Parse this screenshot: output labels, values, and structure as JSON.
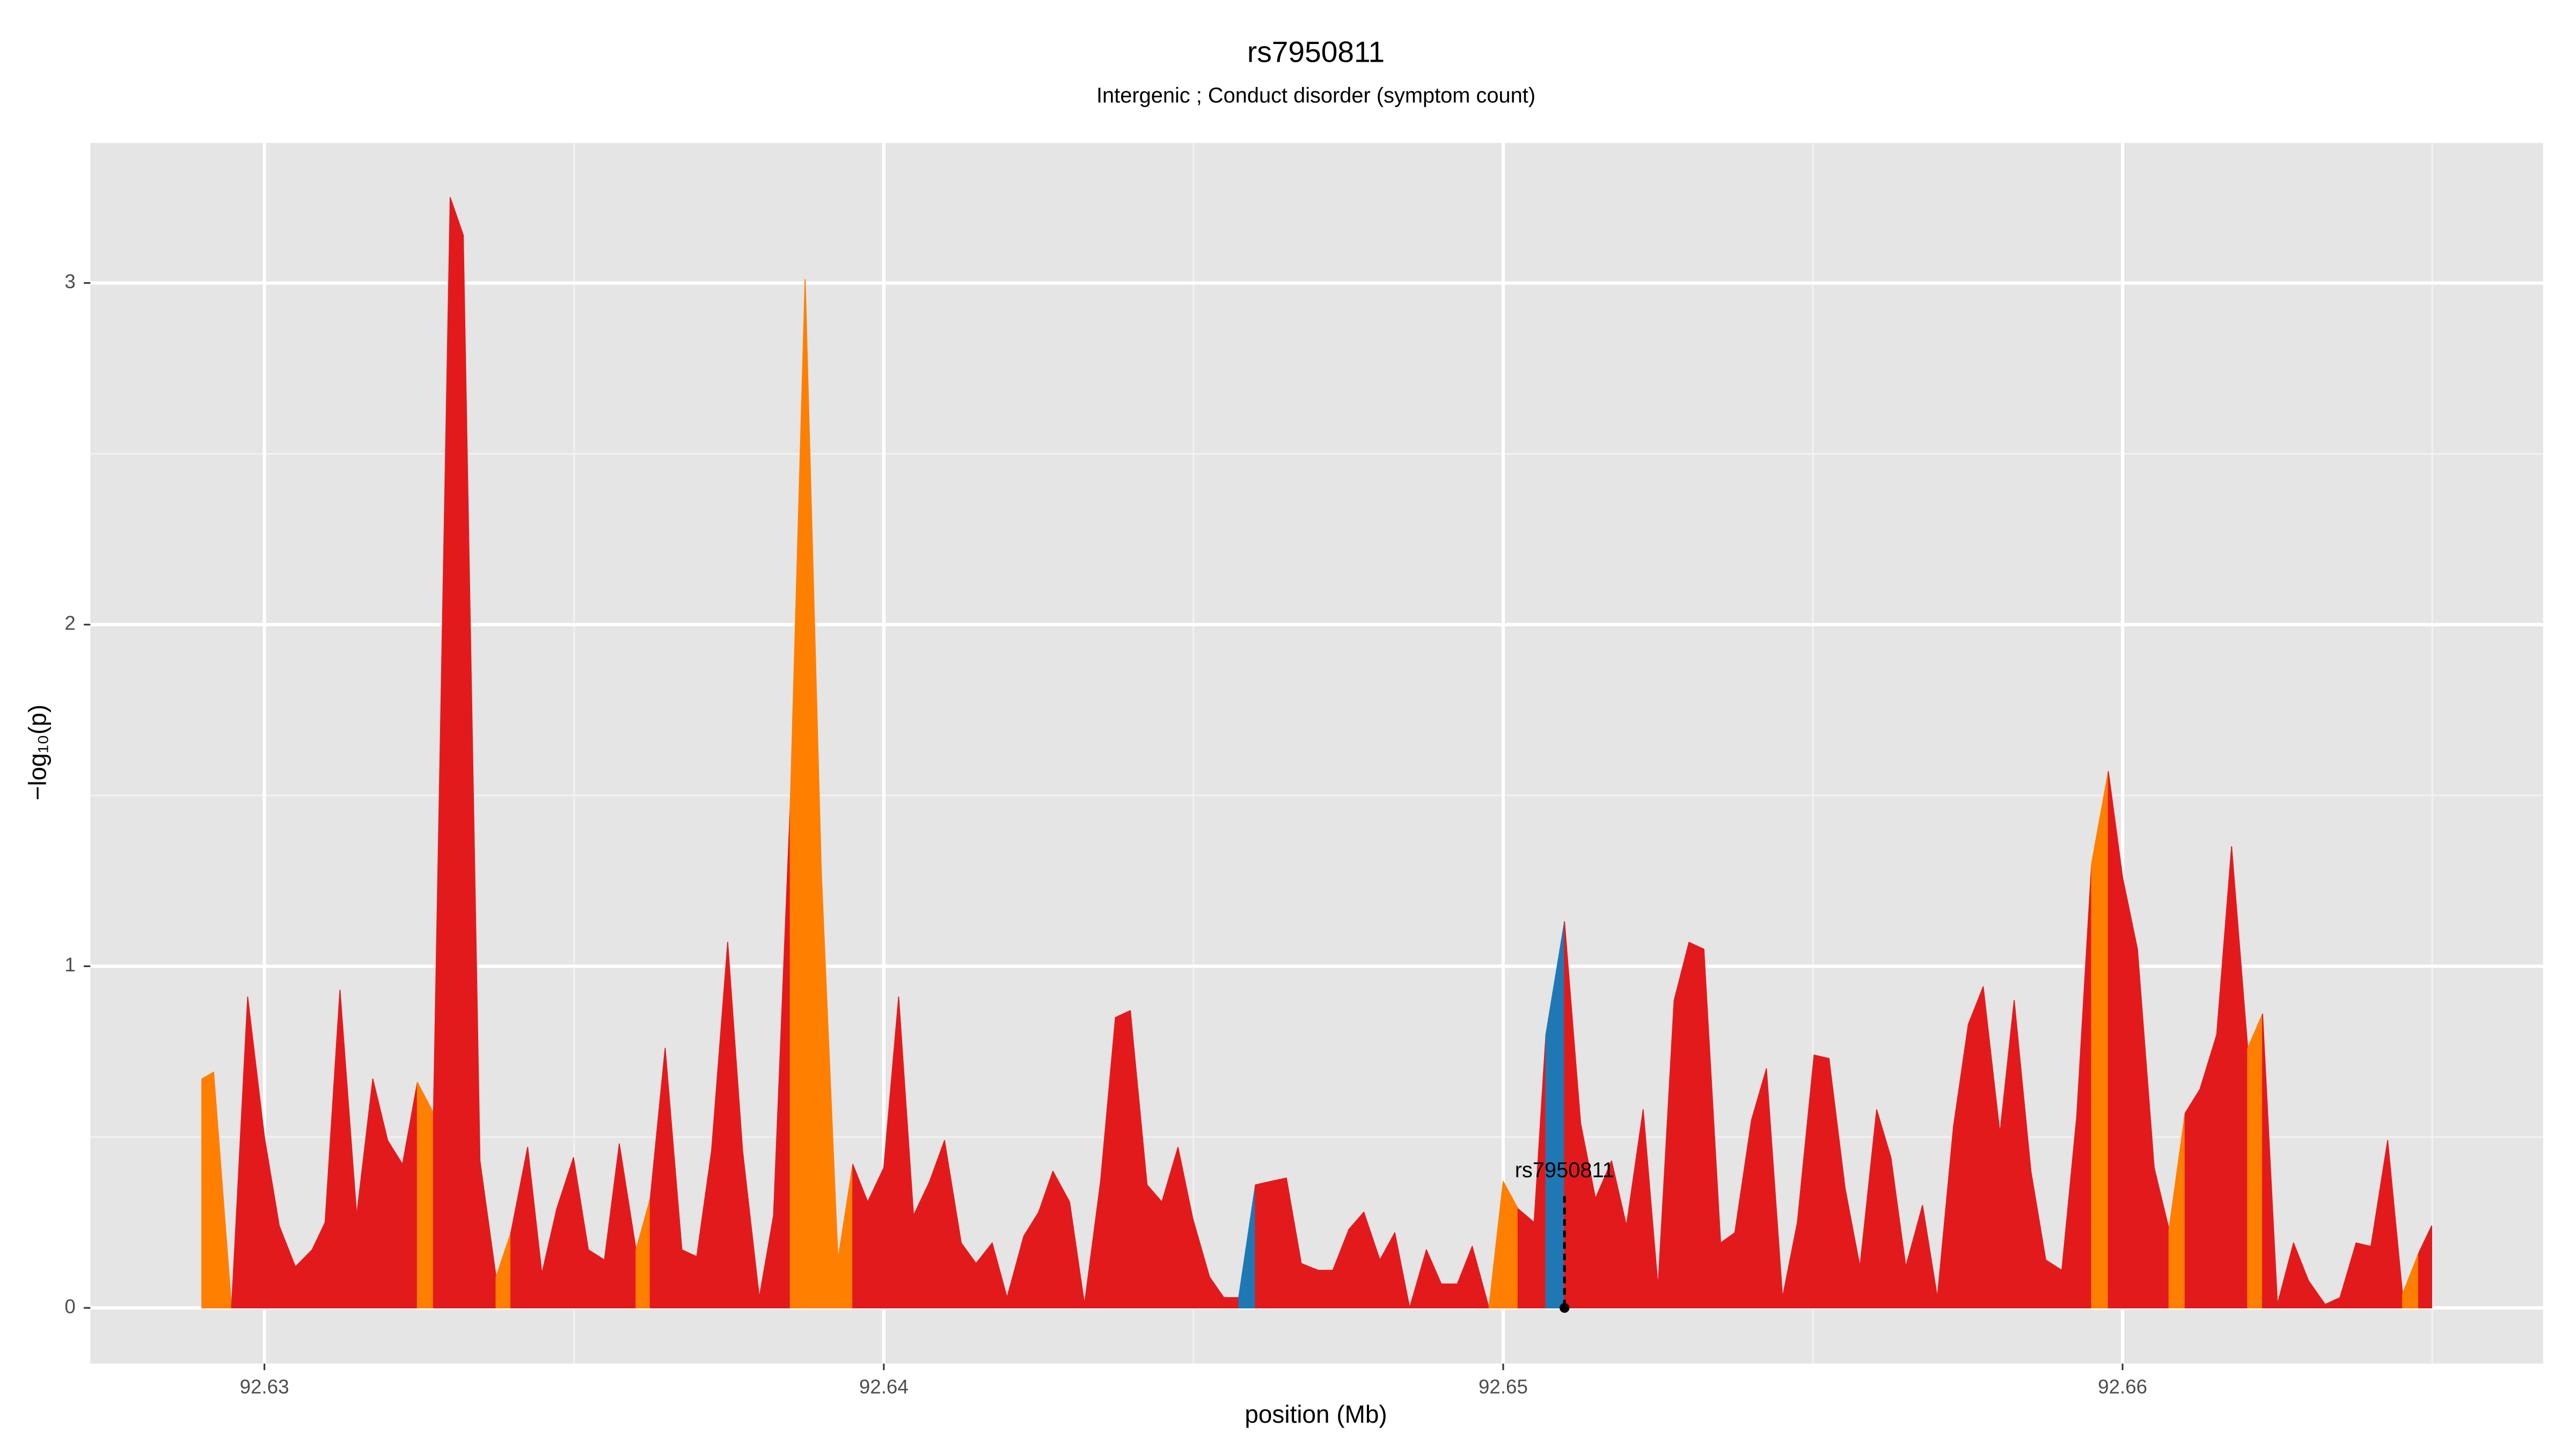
{
  "chart_data": {
    "type": "area",
    "title": "rs7950811",
    "subtitle": "Intergenic ; Conduct disorder (symptom count)",
    "xlabel": "position (Mb)",
    "ylabel": "−log₁₀(p)",
    "xlim": [
      92.62719,
      92.66679
    ],
    "ylim": [
      -0.163,
      3.41
    ],
    "xticks": [
      92.63,
      92.64,
      92.65,
      92.66
    ],
    "yticks": [
      0,
      1,
      2,
      3
    ],
    "xminorticks": [
      92.635,
      92.645,
      92.655,
      92.665
    ],
    "yminorticks": [
      0.5,
      1.5,
      2.5
    ],
    "grid": true,
    "annotation": {
      "text": "rs7950811",
      "x": 92.65099,
      "y": 0
    },
    "series": [
      {
        "x": [
          92.62899,
          92.62918,
          92.62947,
          92.62973,
          92.63,
          92.63024,
          92.6305,
          92.63077,
          92.63098,
          92.63122,
          92.63149,
          92.63175,
          92.63199,
          92.63223,
          92.63247,
          92.63273,
          92.633,
          92.63321,
          92.63348,
          92.63374,
          92.63398,
          92.63425,
          92.63448,
          92.63472,
          92.63499,
          92.63523,
          92.63549,
          92.63573,
          92.636,
          92.63623,
          92.63647,
          92.63674,
          92.63698,
          92.63722,
          92.63748,
          92.63772,
          92.63799,
          92.63822,
          92.63849,
          92.63873,
          92.63899,
          92.63926,
          92.6395,
          92.63974,
          92.64,
          92.64024,
          92.64048,
          92.64074,
          92.64098,
          92.64125,
          92.64149,
          92.64175,
          92.64199,
          92.64226,
          92.6425,
          92.64273,
          92.643,
          92.64324,
          92.6435,
          92.64374,
          92.64398,
          92.64425,
          92.64449,
          92.64475,
          92.64499,
          92.64526,
          92.64549,
          92.64573,
          92.646,
          92.64624,
          92.6465,
          92.64674,
          92.64701,
          92.64725,
          92.64751,
          92.64775,
          92.64801,
          92.64825,
          92.64849,
          92.64876,
          92.649,
          92.64926,
          92.6495,
          92.64977,
          92.65,
          92.65024,
          92.6505,
          92.65069,
          92.65099,
          92.65125,
          92.65149,
          92.65175,
          92.65199,
          92.65226,
          92.6525,
          92.65276,
          92.653,
          92.65324,
          92.65351,
          92.65374,
          92.65401,
          92.65425,
          92.65451,
          92.65475,
          92.65502,
          92.65526,
          92.65552,
          92.65576,
          92.65603,
          92.65626,
          92.6565,
          92.65677,
          92.65701,
          92.65727,
          92.65751,
          92.65775,
          92.65802,
          92.65825,
          92.65852,
          92.65876,
          92.65902,
          92.65926,
          92.6595,
          92.65977,
          92.66,
          92.66024,
          92.66051,
          92.66075,
          92.66101,
          92.66125,
          92.66152,
          92.66176,
          92.66202,
          92.66226,
          92.6625,
          92.66276,
          92.663,
          92.66327,
          92.66351,
          92.66377,
          92.66401,
          92.66428,
          92.66452,
          92.66478,
          92.66499
        ],
        "values": [
          0.67,
          0.69,
          0,
          0.91,
          0.5,
          0.24,
          0.12,
          0.17,
          0.25,
          0.93,
          0.27,
          0.67,
          0.49,
          0.42,
          0.66,
          0.57,
          3.25,
          3.14,
          0.43,
          0.09,
          0.22,
          0.47,
          0.1,
          0.29,
          0.44,
          0.17,
          0.14,
          0.48,
          0.17,
          0.32,
          0.76,
          0.17,
          0.15,
          0.46,
          1.07,
          0.46,
          0.03,
          0.27,
          1.47,
          3.01,
          1.28,
          0.14,
          0.42,
          0.31,
          0.41,
          0.91,
          0.27,
          0.37,
          0.49,
          0.19,
          0.13,
          0.19,
          0.03,
          0.21,
          0.28,
          0.4,
          0.31,
          0.01,
          0.37,
          0.85,
          0.87,
          0.36,
          0.31,
          0.47,
          0.26,
          0.09,
          0.03,
          0.03,
          0.36,
          0.37,
          0.38,
          0.13,
          0.11,
          0.11,
          0.23,
          0.28,
          0.14,
          0.22,
          0,
          0.17,
          0.07,
          0.07,
          0.18,
          0,
          0.37,
          0.29,
          0.25,
          0.8,
          1.13,
          0.54,
          0.32,
          0.43,
          0.24,
          0.58,
          0.06,
          0.9,
          1.07,
          1.05,
          0.19,
          0.22,
          0.55,
          0.7,
          0.03,
          0.25,
          0.74,
          0.73,
          0.35,
          0.12,
          0.58,
          0.44,
          0.12,
          0.3,
          0.03,
          0.53,
          0.83,
          0.94,
          0.51,
          0.9,
          0.4,
          0.14,
          0.11,
          0.56,
          1.3,
          1.57,
          1.26,
          1.05,
          0.41,
          0.23,
          0.57,
          0.64,
          0.8,
          1.35,
          0.76,
          0.86,
          0.01,
          0.19,
          0.08,
          0.01,
          0.03,
          0.19,
          0.18,
          0.49,
          0.04,
          0.16,
          0.24
        ],
        "colors": [
          "#ff7f00",
          "#ff7f00",
          "#e31a1c",
          "#e31a1c",
          "#e31a1c",
          "#e31a1c",
          "#e31a1c",
          "#e31a1c",
          "#e31a1c",
          "#e31a1c",
          "#e31a1c",
          "#e31a1c",
          "#e31a1c",
          "#e31a1c",
          "#ff7f00",
          "#e31a1c",
          "#e31a1c",
          "#e31a1c",
          "#e31a1c",
          "#ff7f00",
          "#e31a1c",
          "#e31a1c",
          "#e31a1c",
          "#e31a1c",
          "#e31a1c",
          "#e31a1c",
          "#e31a1c",
          "#e31a1c",
          "#ff7f00",
          "#e31a1c",
          "#e31a1c",
          "#e31a1c",
          "#e31a1c",
          "#e31a1c",
          "#e31a1c",
          "#e31a1c",
          "#e31a1c",
          "#e31a1c",
          "#ff7f00",
          "#ff7f00",
          "#ff7f00",
          "#ff7f00",
          "#e31a1c",
          "#e31a1c",
          "#e31a1c",
          "#e31a1c",
          "#e31a1c",
          "#e31a1c",
          "#e31a1c",
          "#e31a1c",
          "#e31a1c",
          "#e31a1c",
          "#e31a1c",
          "#e31a1c",
          "#e31a1c",
          "#e31a1c",
          "#e31a1c",
          "#e31a1c",
          "#e31a1c",
          "#e31a1c",
          "#e31a1c",
          "#e31a1c",
          "#e31a1c",
          "#e31a1c",
          "#e31a1c",
          "#e31a1c",
          "#e31a1c",
          "#1f78b4",
          "#e31a1c",
          "#e31a1c",
          "#e31a1c",
          "#e31a1c",
          "#e31a1c",
          "#e31a1c",
          "#e31a1c",
          "#e31a1c",
          "#e31a1c",
          "#e31a1c",
          "#e31a1c",
          "#e31a1c",
          "#e31a1c",
          "#e31a1c",
          "#e31a1c",
          "#ff7f00",
          "#ff7f00",
          "#e31a1c",
          "#e31a1c",
          "#1f78b4",
          "#e31a1c",
          "#e31a1c",
          "#e31a1c",
          "#e31a1c",
          "#e31a1c",
          "#e31a1c",
          "#e31a1c",
          "#e31a1c",
          "#e31a1c",
          "#e31a1c",
          "#e31a1c",
          "#e31a1c",
          "#e31a1c",
          "#e31a1c",
          "#e31a1c",
          "#e31a1c",
          "#e31a1c",
          "#e31a1c",
          "#e31a1c",
          "#e31a1c",
          "#e31a1c",
          "#e31a1c",
          "#e31a1c",
          "#e31a1c",
          "#e31a1c",
          "#e31a1c",
          "#e31a1c",
          "#e31a1c",
          "#e31a1c",
          "#e31a1c",
          "#e31a1c",
          "#e31a1c",
          "#e31a1c",
          "#e31a1c",
          "#ff7f00",
          "#e31a1c",
          "#e31a1c",
          "#e31a1c",
          "#e31a1c",
          "#ff7f00",
          "#e31a1c",
          "#e31a1c",
          "#e31a1c",
          "#e31a1c",
          "#ff7f00",
          "#e31a1c",
          "#e31a1c",
          "#e31a1c",
          "#e31a1c",
          "#e31a1c",
          "#e31a1c",
          "#e31a1c",
          "#e31a1c",
          "#e31a1c",
          "#ff7f00",
          "#e31a1c",
          "#e31a1c"
        ]
      }
    ]
  }
}
